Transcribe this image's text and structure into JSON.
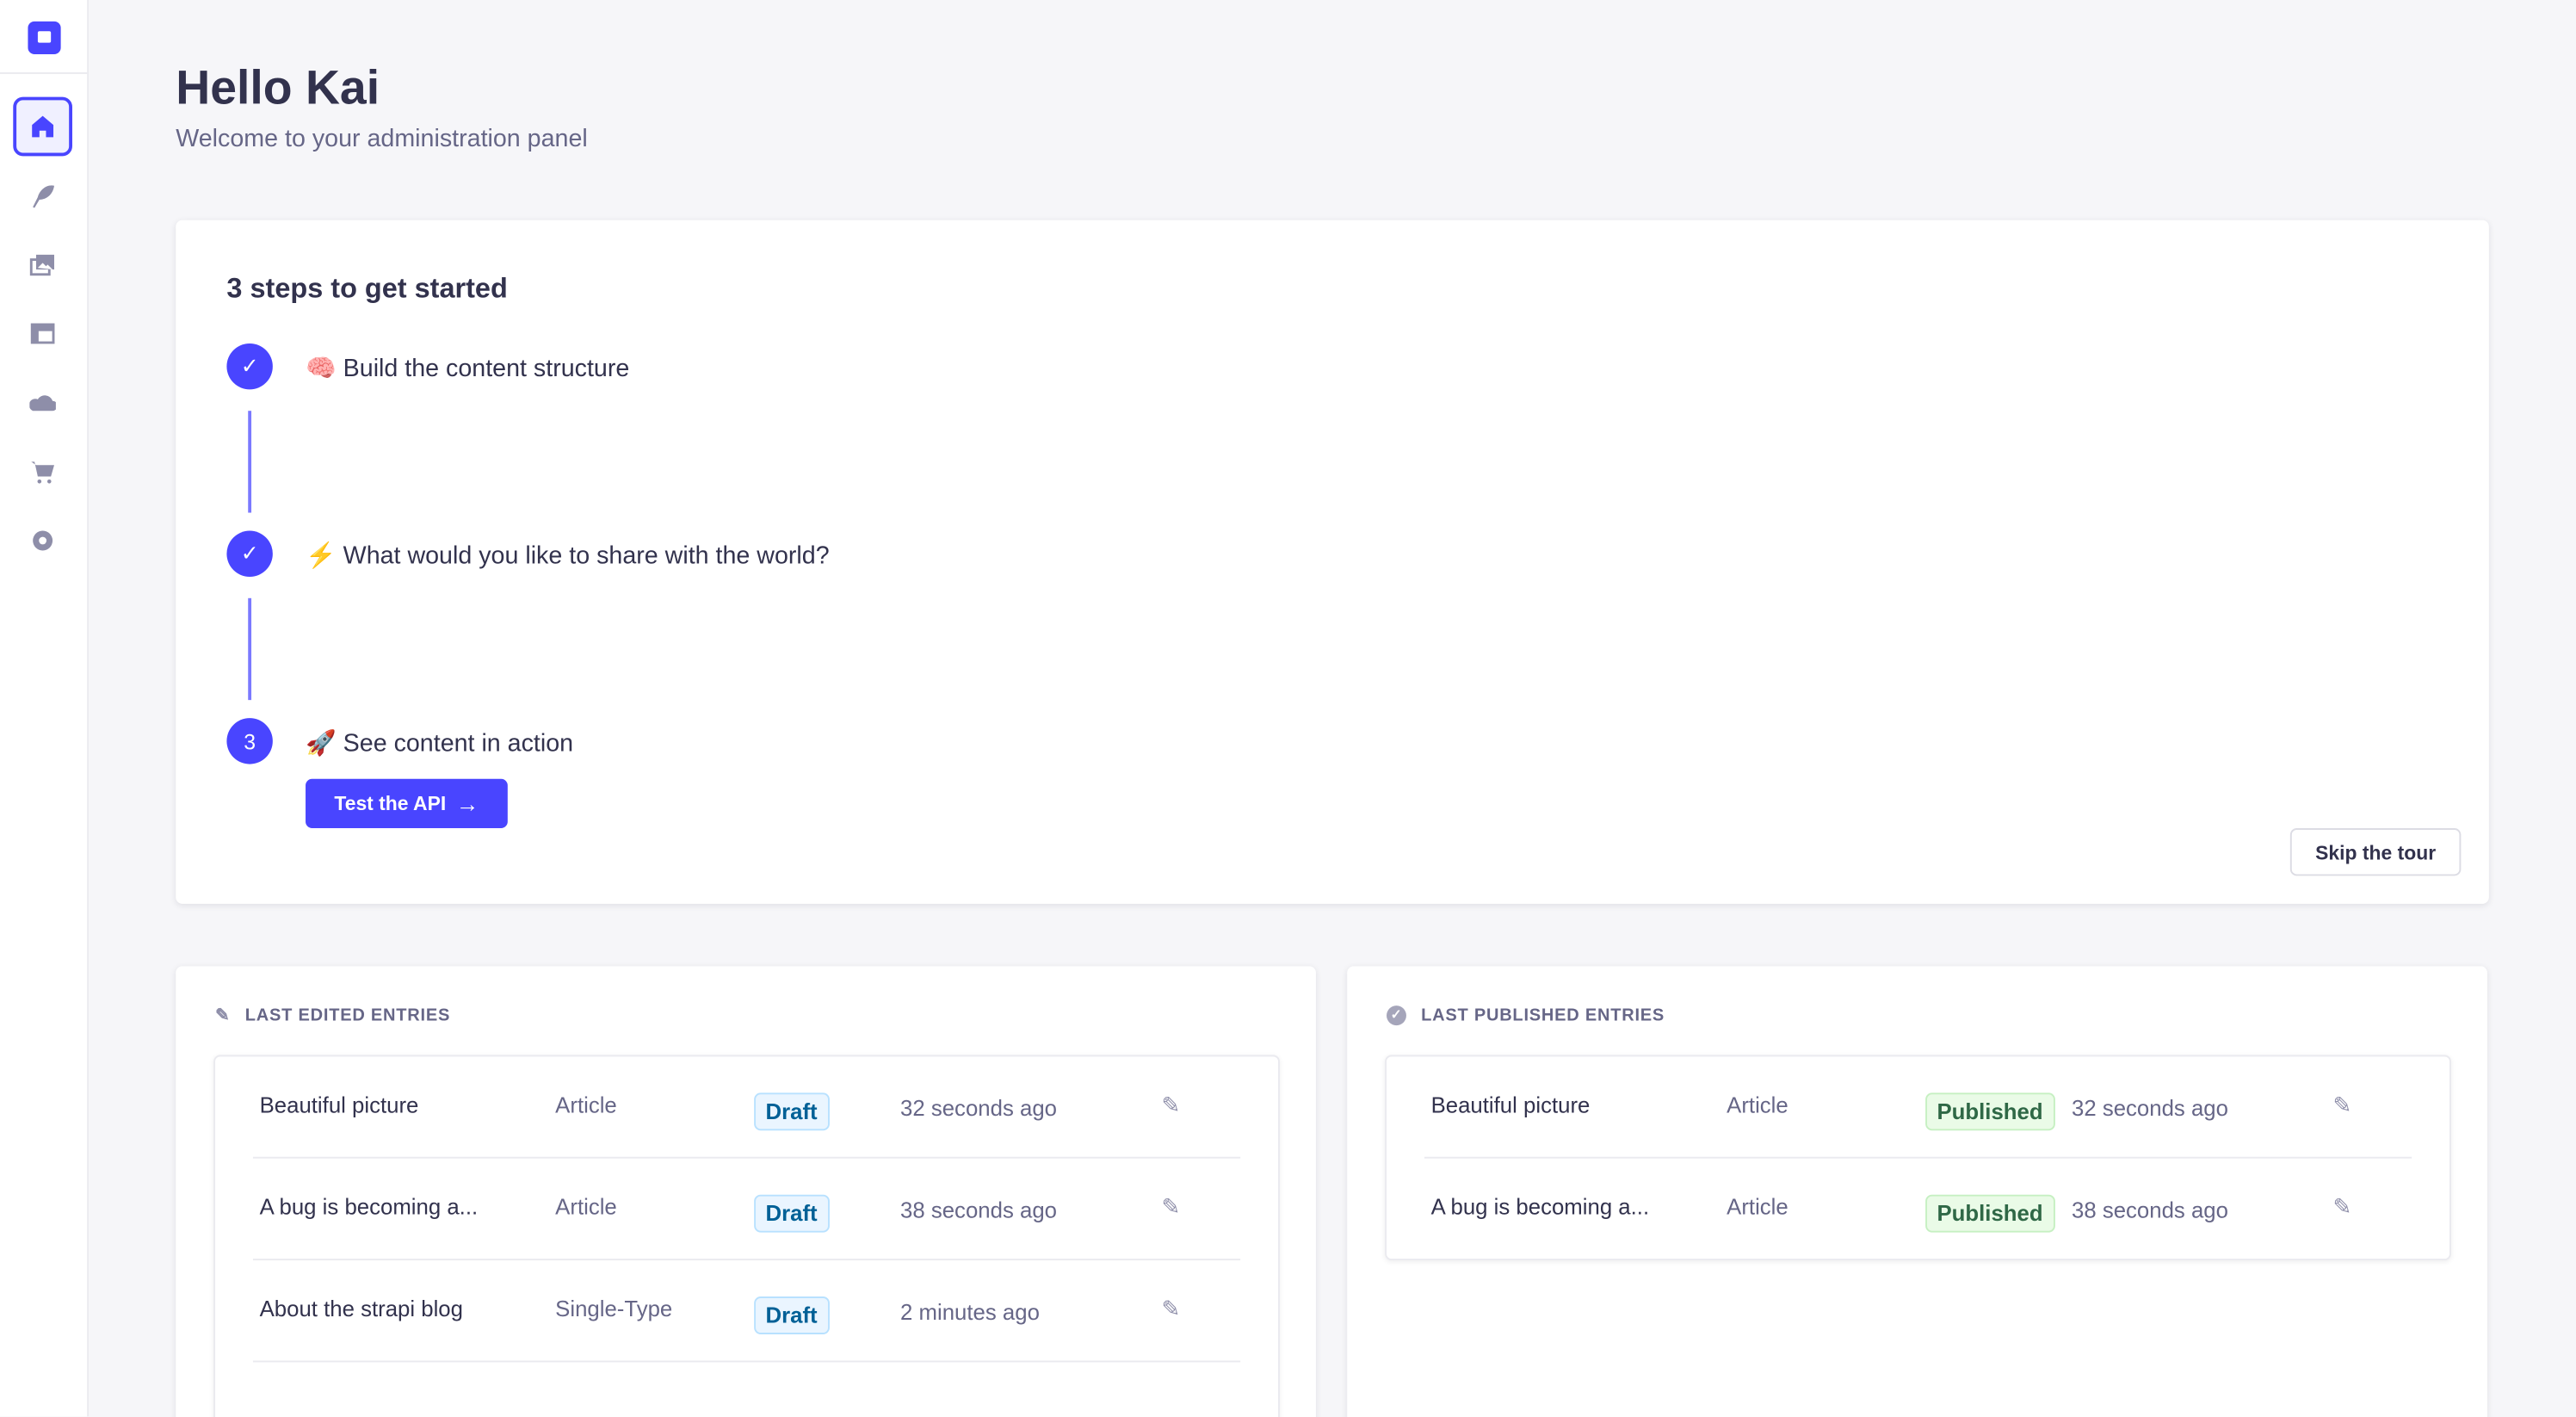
{
  "sidebar": {
    "items": [
      {
        "name": "home",
        "icon": "home-icon",
        "active": true
      },
      {
        "name": "content-type-builder",
        "icon": "feather-icon"
      },
      {
        "name": "media-library",
        "icon": "images-icon"
      },
      {
        "name": "content-manager",
        "icon": "layout-icon"
      },
      {
        "name": "cloud",
        "icon": "cloud-icon"
      },
      {
        "name": "marketplace",
        "icon": "cart-icon"
      },
      {
        "name": "settings",
        "icon": "gear-icon"
      }
    ],
    "accent": "#4945ff"
  },
  "header": {
    "title": "Hello Kai",
    "subtitle": "Welcome to your administration panel"
  },
  "steps": {
    "title": "3 steps to get started",
    "items": [
      {
        "emoji": "🧠",
        "label": "Build the content structure",
        "status": "done"
      },
      {
        "emoji": "⚡",
        "label": "What would you like to share with the world?",
        "status": "done"
      },
      {
        "emoji": "🚀",
        "label": "See content in action",
        "status": "current",
        "number": "3"
      }
    ],
    "test_api": "Test the API",
    "skip": "Skip the tour"
  },
  "last_edited": {
    "title": "LAST EDITED ENTRIES",
    "rows": [
      {
        "name": "Beautiful picture",
        "type": "Article",
        "status": "Draft",
        "time": "32 seconds ago"
      },
      {
        "name": "A bug is becoming a...",
        "type": "Article",
        "status": "Draft",
        "time": "38 seconds ago"
      },
      {
        "name": "About the strapi blog",
        "type": "Single-Type",
        "status": "Draft",
        "time": "2 minutes ago"
      }
    ]
  },
  "last_published": {
    "title": "LAST PUBLISHED ENTRIES",
    "rows": [
      {
        "name": "Beautiful picture",
        "type": "Article",
        "status": "Published",
        "time": "32 seconds ago"
      },
      {
        "name": "A bug is becoming a...",
        "type": "Article",
        "status": "Published",
        "time": "38 seconds ago"
      }
    ]
  }
}
